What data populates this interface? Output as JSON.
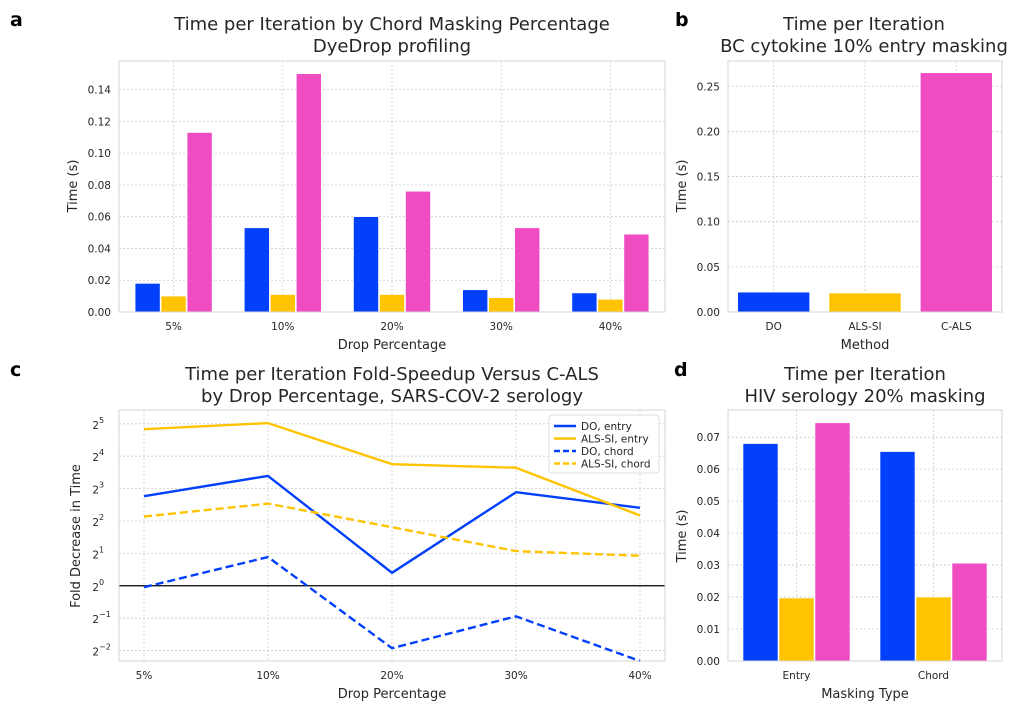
{
  "colors": {
    "DO": "#0340fc",
    "ALS-SI": "#ffc300",
    "C-ALS": "#ef4cc2",
    "frame": "#d6d6d6",
    "grid": "#cccccc"
  },
  "chart_data": [
    {
      "panel": "a",
      "type": "bar",
      "title": [
        "Time per Iteration by Chord Masking Percentage",
        "DyeDrop profiling"
      ],
      "xlabel": "Drop Percentage",
      "ylabel": "Time (s)",
      "categories": [
        "5%",
        "10%",
        "20%",
        "30%",
        "40%"
      ],
      "series": [
        {
          "key": "DO",
          "values": [
            0.018,
            0.053,
            0.06,
            0.014,
            0.012
          ]
        },
        {
          "key": "ALS-SI",
          "values": [
            0.01,
            0.011,
            0.011,
            0.009,
            0.008
          ]
        },
        {
          "key": "C-ALS",
          "values": [
            0.113,
            0.15,
            0.076,
            0.053,
            0.049
          ]
        }
      ],
      "ylim": [
        0,
        0.158
      ],
      "yticks": [
        0,
        0.02,
        0.04,
        0.06,
        0.08,
        0.1,
        0.12,
        0.14
      ],
      "ytick_labels": [
        "0.00",
        "0.02",
        "0.04",
        "0.06",
        "0.08",
        "0.10",
        "0.12",
        "0.14"
      ],
      "grid": true
    },
    {
      "panel": "b",
      "type": "bar",
      "title": [
        "Time per Iteration",
        "BC cytokine 10% entry masking"
      ],
      "xlabel": "Method",
      "ylabel": "Time (s)",
      "categories": [
        "DO",
        "ALS-SI",
        "C-ALS"
      ],
      "values": [
        0.022,
        0.021,
        0.265
      ],
      "ylim": [
        0,
        0.278
      ],
      "yticks": [
        0,
        0.05,
        0.1,
        0.15,
        0.2,
        0.25
      ],
      "ytick_labels": [
        "0.00",
        "0.05",
        "0.10",
        "0.15",
        "0.20",
        "0.25"
      ],
      "grid": true
    },
    {
      "panel": "c",
      "type": "line",
      "title": [
        "Time per Iteration Fold-Speedup Versus C-ALS",
        "by Drop Percentage, SARS-COV-2 serology"
      ],
      "xlabel": "Drop Percentage",
      "ylabel": "Fold Decrease in Time",
      "x": [
        "5%",
        "10%",
        "20%",
        "30%",
        "40%"
      ],
      "yscale": "log2",
      "ylim": [
        0.2,
        43
      ],
      "yticks": [
        0.25,
        0.5,
        1,
        2,
        4,
        8,
        16,
        32
      ],
      "ytick_base": "2",
      "ytick_exponents": [
        "−2",
        "−1",
        "0",
        "1",
        "2",
        "3",
        "4",
        "5"
      ],
      "reference_line": 1,
      "series": [
        {
          "name": "DO, entry",
          "color_key": "DO",
          "style": "solid",
          "values": [
            6.8,
            10.5,
            1.32,
            7.4,
            5.3
          ]
        },
        {
          "name": "ALS-SI, entry",
          "color_key": "ALS-SI",
          "style": "solid",
          "values": [
            28.5,
            32.5,
            13.5,
            12.5,
            4.5
          ]
        },
        {
          "name": "DO, chord",
          "color_key": "DO",
          "style": "dashed",
          "values": [
            0.97,
            1.85,
            0.263,
            0.52,
            0.2
          ]
        },
        {
          "name": "ALS-SI, chord",
          "color_key": "ALS-SI",
          "style": "dashed",
          "values": [
            4.4,
            5.8,
            3.5,
            2.1,
            1.9
          ]
        }
      ],
      "legend": "upper right",
      "grid": true
    },
    {
      "panel": "d",
      "type": "bar",
      "title": [
        "Time per Iteration",
        "HIV serology 20% masking"
      ],
      "xlabel": "Masking Type",
      "ylabel": "Time (s)",
      "categories": [
        "Entry",
        "Chord"
      ],
      "series": [
        {
          "key": "DO",
          "values": [
            0.068,
            0.0655
          ]
        },
        {
          "key": "ALS-SI",
          "values": [
            0.0197,
            0.02
          ]
        },
        {
          "key": "C-ALS",
          "values": [
            0.0745,
            0.0306
          ]
        }
      ],
      "ylim": [
        0,
        0.0785
      ],
      "yticks": [
        0,
        0.01,
        0.02,
        0.03,
        0.04,
        0.05,
        0.06,
        0.07
      ],
      "ytick_labels": [
        "0.00",
        "0.01",
        "0.02",
        "0.03",
        "0.04",
        "0.05",
        "0.06",
        "0.07"
      ],
      "grid": true
    }
  ]
}
